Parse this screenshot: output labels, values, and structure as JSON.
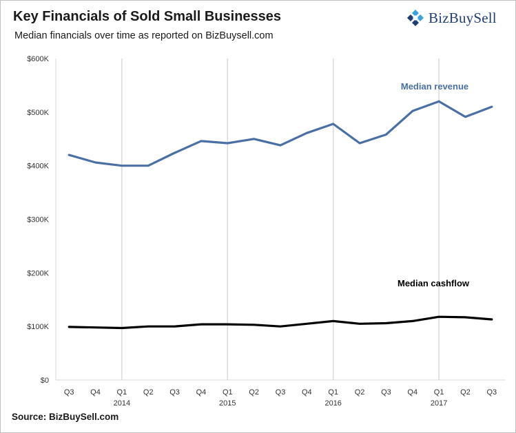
{
  "header": {
    "title": "Key Financials of Sold Small Businesses",
    "subtitle": "Median financials over time as reported  on  BizBuysell.com"
  },
  "brand": {
    "name": "BizBuySell",
    "color": "#1f3e74",
    "accent": "#3aa3d9"
  },
  "footer": {
    "source": "Source: BizBuySell.com"
  },
  "chart_data": {
    "type": "line",
    "title": "Key Financials of Sold Small Businesses",
    "subtitle": "Median financials over time as reported  on  BizBuysell.com",
    "xlabel": "",
    "ylabel": "",
    "ylim": [
      0,
      600000
    ],
    "yticks": [
      0,
      100000,
      200000,
      300000,
      400000,
      500000,
      600000
    ],
    "ytick_labels": [
      "$0",
      "$100K",
      "$200K",
      "$300K",
      "$400K",
      "$500K",
      "$600K"
    ],
    "categories": [
      "Q3",
      "Q4",
      "Q1",
      "Q2",
      "Q3",
      "Q4",
      "Q1",
      "Q2",
      "Q3",
      "Q4",
      "Q1",
      "Q2",
      "Q3",
      "Q4",
      "Q1",
      "Q2",
      "Q3"
    ],
    "year_labels": [
      {
        "index": 2,
        "label": "2014"
      },
      {
        "index": 6,
        "label": "2015"
      },
      {
        "index": 10,
        "label": "2016"
      },
      {
        "index": 14,
        "label": "2017"
      }
    ],
    "gridlines": "vertical at Q1 of each year",
    "series": [
      {
        "name": "Median revenue",
        "color": "#4a6fa5",
        "values": [
          420000,
          406000,
          400000,
          400000,
          424000,
          446000,
          442000,
          450000,
          438000,
          461000,
          478000,
          442000,
          458000,
          502000,
          520000,
          491000,
          510000
        ]
      },
      {
        "name": "Median cashflow",
        "color": "#000000",
        "values": [
          99000,
          98000,
          97000,
          100000,
          100000,
          104000,
          104000,
          103000,
          100000,
          105000,
          110000,
          105000,
          106000,
          110000,
          118000,
          117000,
          113000
        ]
      }
    ]
  }
}
